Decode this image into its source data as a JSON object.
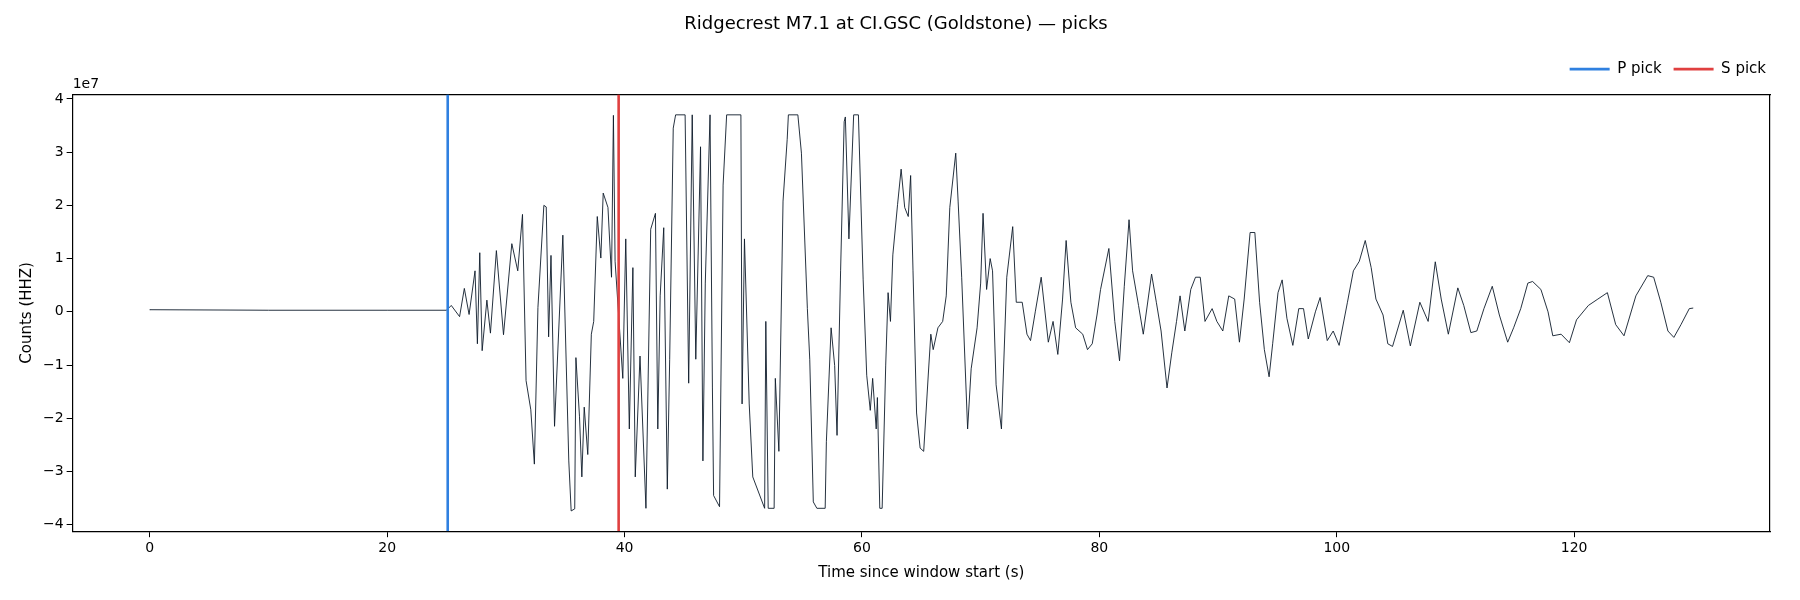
{
  "chart_data": {
    "type": "line",
    "title": "Ridgecrest M7.1 at CI.GSC (Goldstone) — picks",
    "xlabel": "Time since window start (s)",
    "ylabel": "Counts (HHZ)",
    "annotations": [
      "1e7"
    ],
    "xlim": [
      -6.5,
      136.5
    ],
    "xticks": [
      0,
      20,
      40,
      60,
      80,
      100,
      120
    ],
    "ylim": [
      -4.12,
      4.08
    ],
    "yticks": [
      {
        "value": -4,
        "label": "−4"
      },
      {
        "value": -3,
        "label": "−3"
      },
      {
        "value": -2,
        "label": "−2"
      },
      {
        "value": -1,
        "label": "−1"
      },
      0,
      1,
      2,
      3,
      4
    ],
    "grid": false,
    "legend": "top right",
    "marker": "none",
    "line_style": "solid",
    "ref_lines": [
      {
        "axis": "x",
        "value": 25.1,
        "label": "P pick",
        "color": "#2f80e0"
      },
      {
        "axis": "x",
        "value": 39.5,
        "label": "S pick",
        "color": "#e04040"
      }
    ],
    "series": [
      {
        "color": "#0d1b2a",
        "x": [
          0,
          10,
          20,
          25,
          25.4,
          26.1,
          26.5,
          26.9,
          27.4,
          27.6,
          27.8,
          28.0,
          28.4,
          28.7,
          29.2,
          29.8,
          30.5,
          31.0,
          31.4,
          31.7,
          32.1,
          32.4,
          32.7,
          33.2,
          33.4,
          33.6,
          33.8,
          34.1,
          34.8,
          35.3,
          35.5,
          35.8,
          35.9,
          36.2,
          36.4,
          36.6,
          36.9,
          37.2,
          37.4,
          37.7,
          38.0,
          38.2,
          38.6,
          38.9,
          39.06,
          39.2,
          39.5,
          39.85,
          40.1,
          40.4,
          40.7,
          40.9,
          41.3,
          41.8,
          42.2,
          42.6,
          42.8,
          43.0,
          43.3,
          43.6,
          43.8,
          44.1,
          44.3,
          45.1,
          45.4,
          45.7,
          46.0,
          46.4,
          46.6,
          46.8,
          47.2,
          47.4,
          47.5,
          48.0,
          48.3,
          48.6,
          49.8,
          49.9,
          50.1,
          50.5,
          50.8,
          51.8,
          51.9,
          52.1,
          52.6,
          52.7,
          53.0,
          53.35,
          53.7,
          53.8,
          54.6,
          54.9,
          55.4,
          55.6,
          55.9,
          56.2,
          56.9,
          57.0,
          57.4,
          57.7,
          57.9,
          58.2,
          58.5,
          58.6,
          58.9,
          59.3,
          59.7,
          60.1,
          60.4,
          60.7,
          60.9,
          61.2,
          61.3,
          61.5,
          61.7,
          62.0,
          62.2,
          62.4,
          62.6,
          63.0,
          63.3,
          63.6,
          63.9,
          64.1,
          64.3,
          64.6,
          64.9,
          65.2,
          65.6,
          65.8,
          66.0,
          66.4,
          66.8,
          67.1,
          67.4,
          67.9,
          68.1,
          68.4,
          68.9,
          69.2,
          69.7,
          70.0,
          70.2,
          70.5,
          70.8,
          71.0,
          71.3,
          71.75,
          72.2,
          72.7,
          73.0,
          73.5,
          73.9,
          74.2,
          74.6,
          75.1,
          75.7,
          76.1,
          76.5,
          76.9,
          77.2,
          77.6,
          78.0,
          78.6,
          79.0,
          79.4,
          79.8,
          80.1,
          80.8,
          81.3,
          81.7,
          82.1,
          82.5,
          82.8,
          83.3,
          83.7,
          84.4,
          84.8,
          85.2,
          85.7,
          86.1,
          86.5,
          86.8,
          87.2,
          87.7,
          88.1,
          88.5,
          88.9,
          89.5,
          89.9,
          90.4,
          90.9,
          91.4,
          91.8,
          92.2,
          92.7,
          93.1,
          93.5,
          93.9,
          94.3,
          94.6,
          95.05,
          95.4,
          95.8,
          96.3,
          96.8,
          97.2,
          97.6,
          98.2,
          98.6,
          99.2,
          99.7,
          100.2,
          100.9,
          101.4,
          101.9,
          102.4,
          102.9,
          103.3,
          103.9,
          104.3,
          104.7,
          105.6,
          106.2,
          107.0,
          107.7,
          108.3,
          108.8,
          109.4,
          110.2,
          110.7,
          111.3,
          111.8,
          112.4,
          113.1,
          113.7,
          114.4,
          114.9,
          115.5,
          116.1,
          116.5,
          117.2,
          117.8,
          118.2,
          118.9,
          119.6,
          120.2,
          121.2,
          122.0,
          122.8,
          123.5,
          124.2,
          125.2,
          126.2,
          126.7,
          127.3,
          127.9,
          128.4,
          129.0,
          129.7,
          130.0
        ],
        "values": [
          0.04,
          0.03,
          0.03,
          0.03,
          0.12,
          -0.09,
          0.44,
          -0.05,
          0.77,
          -0.6,
          1.11,
          -0.73,
          0.22,
          -0.4,
          1.15,
          -0.43,
          1.28,
          0.77,
          1.83,
          -1.29,
          -1.84,
          -2.86,
          0.08,
          2.0,
          1.97,
          -0.47,
          1.06,
          -2.15,
          1.44,
          -2.8,
          -3.74,
          -3.7,
          -0.86,
          -1.96,
          -3.1,
          -1.79,
          -2.68,
          -0.42,
          -0.18,
          1.79,
          1.01,
          2.23,
          1.96,
          0.65,
          3.69,
          0.95,
          null,
          -1.25,
          1.37,
          -2.2,
          0.83,
          -3.1,
          -0.83,
          -3.69,
          1.55,
          1.85,
          -2.2,
          0.3,
          1.58,
          -3.33,
          -0.89,
          3.45,
          3.7,
          3.7,
          -1.34,
          3.7,
          -0.89,
          3.1,
          -2.8,
          0.54,
          3.7,
          -1.43,
          -3.45,
          -3.66,
          2.38,
          3.7,
          3.7,
          -1.73,
          1.37,
          -1.73,
          -3.1,
          -3.69,
          -0.18,
          -3.69,
          -3.69,
          -1.25,
          -2.62,
          2.08,
          3.24,
          3.7,
          3.7,
          2.98,
          0.06,
          -0.89,
          -3.57,
          -3.69,
          -3.69,
          -2.44,
          -0.3,
          -1.01,
          -2.32,
          0.77,
          3.57,
          3.66,
          1.37,
          3.7,
          3.7,
          0.6,
          -1.19,
          -1.85,
          -1.25,
          -2.2,
          -1.61,
          -3.69,
          -3.69,
          -1.0,
          0.36,
          -0.18,
          1.07,
          2.02,
          2.68,
          1.96,
          1.79,
          2.56,
          0.77,
          -1.9,
          -2.56,
          -2.62,
          -1.13,
          -0.42,
          -0.71,
          -0.3,
          -0.18,
          0.3,
          1.96,
          2.98,
          2.08,
          0.65,
          -2.2,
          -1.07,
          -0.3,
          0.54,
          1.85,
          0.42,
          1.0,
          0.77,
          -1.37,
          -2.2,
          0.65,
          1.6,
          0.18,
          0.18,
          -0.42,
          -0.54,
          0,
          0.65,
          -0.57,
          -0.18,
          -0.8,
          0.24,
          1.34,
          0.18,
          -0.3,
          -0.42,
          -0.71,
          -0.6,
          -0.06,
          0.42,
          1.19,
          -0.18,
          -0.92,
          0.48,
          1.73,
          0.77,
          0.12,
          -0.42,
          0.71,
          0.18,
          -0.36,
          -1.43,
          -0.77,
          -0.18,
          0.3,
          -0.36,
          0.42,
          0.65,
          0.65,
          -0.18,
          0.06,
          -0.18,
          -0.36,
          0.3,
          0.24,
          -0.57,
          0.24,
          1.49,
          1.49,
          0.18,
          -0.71,
          -1.22,
          -0.6,
          0.36,
          0.6,
          -0.12,
          -0.63,
          0.06,
          0.06,
          -0.51,
          0,
          0.27,
          -0.54,
          -0.36,
          -0.63,
          0.18,
          0.77,
          0.95,
          1.34,
          0.83,
          0.24,
          -0.06,
          -0.6,
          -0.65,
          0.03,
          -0.64,
          0.18,
          -0.18,
          0.94,
          0.24,
          -0.42,
          0.45,
          0.12,
          -0.39,
          -0.36,
          0.06,
          0.48,
          -0.06,
          -0.57,
          -0.3,
          0.06,
          0.54,
          0.57,
          0.42,
          0,
          -0.45,
          -0.42,
          -0.58,
          -0.15,
          0.12,
          0.24,
          0.36,
          -0.24,
          -0.45,
          0.3,
          0.68,
          0.65,
          0.18,
          -0.36,
          -0.48,
          -0.24,
          0.06,
          0.07
        ]
      }
    ]
  }
}
